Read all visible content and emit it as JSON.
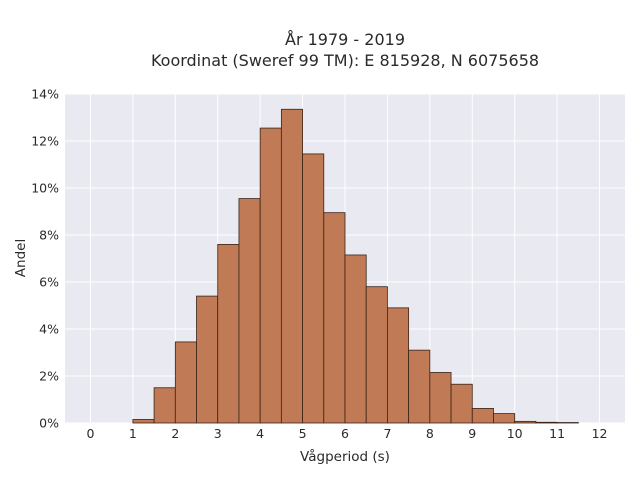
{
  "chart_data": {
    "type": "bar",
    "title": [
      "År 1979 - 2019",
      "Koordinat (Sweref 99 TM): E 815928, N 6075658"
    ],
    "xlabel": "Vågperiod (s)",
    "ylabel": "Andel",
    "xlim": [
      -0.6,
      12.6
    ],
    "ylim": [
      0,
      14
    ],
    "xticks": [
      0,
      1,
      2,
      3,
      4,
      5,
      6,
      7,
      8,
      9,
      10,
      11,
      12
    ],
    "yticks": [
      0,
      2,
      4,
      6,
      8,
      10,
      12,
      14
    ],
    "ytick_suffix": "%",
    "bin_width": 0.5,
    "bin_starts": [
      1.0,
      1.5,
      2.0,
      2.5,
      3.0,
      3.5,
      4.0,
      4.5,
      5.0,
      5.5,
      6.0,
      6.5,
      7.0,
      7.5,
      8.0,
      8.5,
      9.0,
      9.5,
      10.0,
      10.5,
      11.0
    ],
    "values": [
      0.15,
      1.5,
      3.45,
      5.4,
      7.6,
      9.55,
      12.55,
      13.35,
      11.45,
      8.95,
      7.15,
      5.8,
      4.9,
      3.1,
      2.15,
      1.65,
      0.62,
      0.4,
      0.07,
      0.03,
      0.02
    ],
    "grid": true,
    "colors": {
      "bar": "#c07a55",
      "bar_edge": "#3a2417",
      "plot_bg": "#e9e9f1",
      "grid": "#ffffff"
    }
  }
}
